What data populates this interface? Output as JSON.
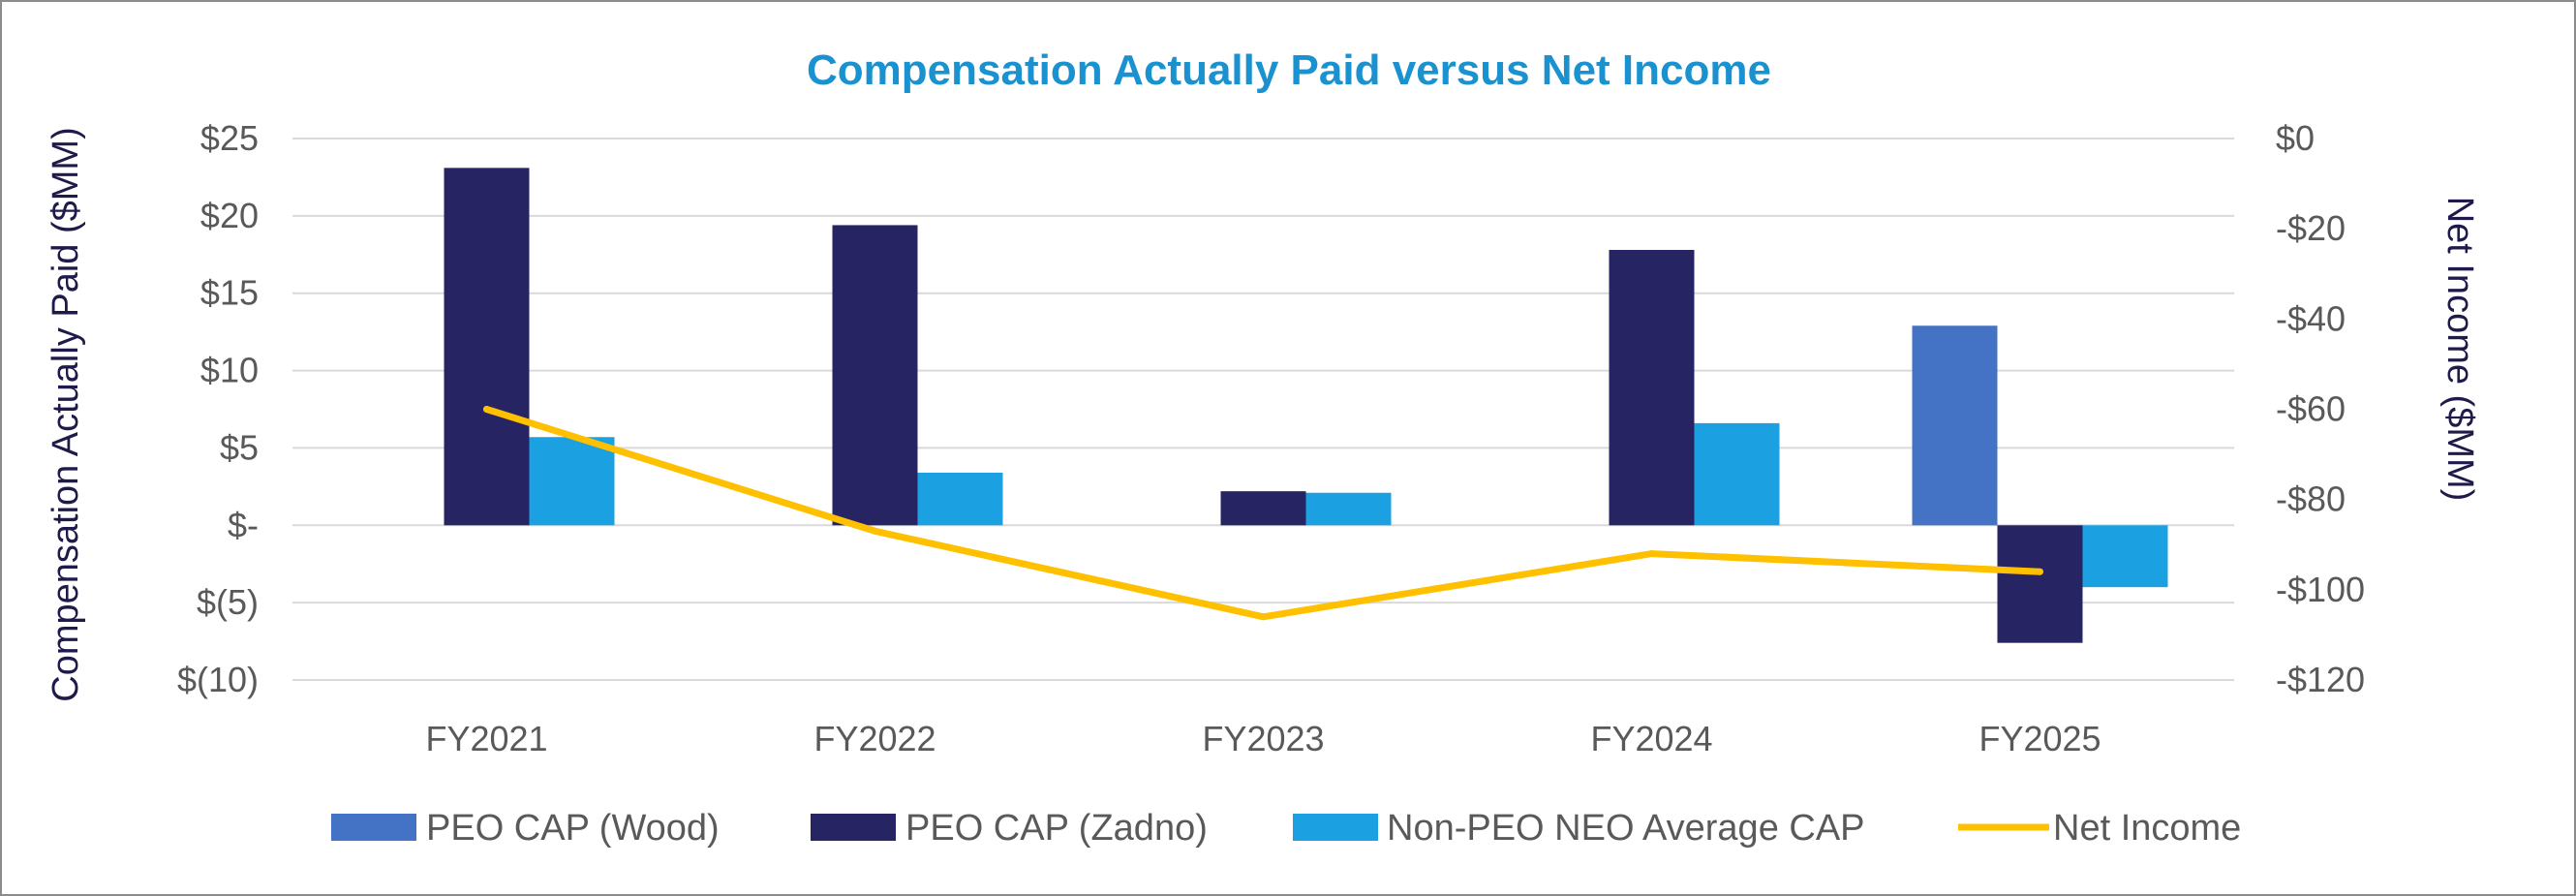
{
  "chart_data": {
    "type": "bar",
    "title": "Compensation Actually Paid versus Net Income",
    "ylabel": "Compensation Actually Paid ($MM)",
    "y2label": "Net Income ($MM)",
    "categories": [
      "FY2021",
      "FY2022",
      "FY2023",
      "FY2024",
      "FY2025"
    ],
    "ylim": [
      -10,
      25
    ],
    "y2lim": [
      -120,
      0
    ],
    "yticks": [
      {
        "value": 25,
        "label": "$25"
      },
      {
        "value": 20,
        "label": "$20"
      },
      {
        "value": 15,
        "label": "$15"
      },
      {
        "value": 10,
        "label": "$10"
      },
      {
        "value": 5,
        "label": "$5"
      },
      {
        "value": 0,
        "label": "$-"
      },
      {
        "value": -5,
        "label": "$(5)"
      },
      {
        "value": -10,
        "label": "$(10)"
      }
    ],
    "y2ticks": [
      {
        "value": 0,
        "label": "$0"
      },
      {
        "value": -20,
        "label": "-$20"
      },
      {
        "value": -40,
        "label": "-$40"
      },
      {
        "value": -60,
        "label": "-$60"
      },
      {
        "value": -80,
        "label": "-$80"
      },
      {
        "value": -100,
        "label": "-$100"
      },
      {
        "value": -120,
        "label": "-$120"
      }
    ],
    "grid": true,
    "legend_position": "bottom",
    "series": [
      {
        "name": "PEO CAP (Wood)",
        "kind": "bar",
        "axis": "left",
        "color": "#4472C4",
        "values": [
          null,
          null,
          null,
          null,
          12.9
        ]
      },
      {
        "name": "PEO CAP (Zadno)",
        "kind": "bar",
        "axis": "left",
        "color": "#262463",
        "values": [
          23.1,
          19.4,
          2.2,
          17.8,
          -7.6
        ]
      },
      {
        "name": "Non-PEO NEO Average CAP",
        "kind": "bar",
        "axis": "left",
        "color": "#1BA1E2",
        "values": [
          5.7,
          3.4,
          2.1,
          6.6,
          -4.0
        ]
      },
      {
        "name": "Net Income",
        "kind": "line",
        "axis": "right",
        "color": "#FFC000",
        "values": [
          -60,
          -87,
          -106,
          -92,
          -96
        ]
      }
    ]
  },
  "colors": {
    "title": "#1B92D0",
    "left_axis_title": "#1E1B4B",
    "right_axis_title": "#1E1B4B",
    "gridline": "#D9D9D9"
  }
}
